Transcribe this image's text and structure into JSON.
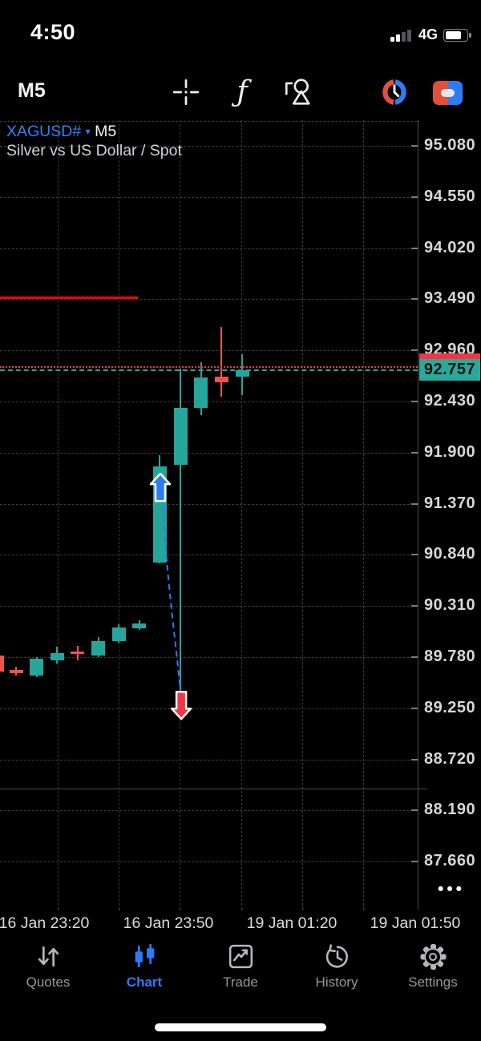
{
  "status_bar": {
    "time": "4:50",
    "network": "4G",
    "signal_bars_total": 4,
    "signal_bars_active": 2,
    "battery_level": 0.72
  },
  "toolbar": {
    "timeframe": "M5",
    "icons": [
      "crosshair",
      "function",
      "objects",
      "trading-sessions",
      "one-click-trading"
    ]
  },
  "chart": {
    "symbol": "XAGUSD#",
    "symbol_caret": "▾",
    "timeframe": "M5",
    "description": "Silver vs US Dollar / Spot",
    "current_price": "92.757",
    "bid_price": 92.757,
    "ask_price": 92.787,
    "more_label": "•••",
    "price_axis_labels": [
      "95.080",
      "94.550",
      "94.020",
      "93.490",
      "92.960",
      "92.430",
      "91.900",
      "91.370",
      "90.840",
      "90.310",
      "89.780",
      "89.250",
      "88.720",
      "88.190",
      "87.660"
    ],
    "time_axis_labels": [
      "16 Jan 23:20",
      "16 Jan 23:50",
      "19 Jan 01:20",
      "19 Jan 01:50"
    ],
    "level_line": {
      "price": 93.502,
      "x_from": 0,
      "x_to": 172
    },
    "chart_data": {
      "type": "candlestick",
      "title": "XAGUSD# M5",
      "ylim": [
        87.66,
        95.08
      ],
      "candles": [
        {
          "slot": -0.9,
          "dir": "down",
          "o": 89.8,
          "h": 89.8,
          "l": 89.63,
          "c": 89.63
        },
        {
          "slot": 0,
          "dir": "down",
          "o": 89.65,
          "h": 89.68,
          "l": 89.59,
          "c": 89.61
        },
        {
          "slot": 1,
          "dir": "up",
          "o": 89.59,
          "h": 89.78,
          "l": 89.57,
          "c": 89.76
        },
        {
          "slot": 2,
          "dir": "up",
          "o": 89.75,
          "h": 89.89,
          "l": 89.71,
          "c": 89.82
        },
        {
          "slot": 3,
          "dir": "down",
          "o": 89.84,
          "h": 89.9,
          "l": 89.75,
          "c": 89.81
        },
        {
          "slot": 4,
          "dir": "up",
          "o": 89.8,
          "h": 89.99,
          "l": 89.78,
          "c": 89.95
        },
        {
          "slot": 5,
          "dir": "up",
          "o": 89.95,
          "h": 90.12,
          "l": 89.93,
          "c": 90.09
        },
        {
          "slot": 6,
          "dir": "up",
          "o": 90.08,
          "h": 90.16,
          "l": 90.06,
          "c": 90.13
        },
        {
          "slot": 7,
          "dir": "up",
          "o": 90.76,
          "h": 91.87,
          "l": 90.75,
          "c": 91.76
        },
        {
          "slot": 8,
          "dir": "up",
          "o": 91.77,
          "h": 92.77,
          "l": 89.41,
          "c": 92.36
        },
        {
          "slot": 9,
          "dir": "up",
          "o": 92.36,
          "h": 92.84,
          "l": 92.29,
          "c": 92.68
        },
        {
          "slot": 10,
          "dir": "down",
          "o": 92.69,
          "h": 93.2,
          "l": 92.48,
          "c": 92.63
        },
        {
          "slot": 11,
          "dir": "up",
          "o": 92.69,
          "h": 92.92,
          "l": 92.5,
          "c": 92.757
        }
      ]
    },
    "markers": {
      "buy_arrow": {
        "slot": 7,
        "price": 91.54
      },
      "sell_arrow": {
        "slot": 8,
        "price": 89.28
      }
    }
  },
  "tab_bar": {
    "active": "Chart",
    "items": [
      {
        "label": "Quotes",
        "icon": "quotes-arrows-icon"
      },
      {
        "label": "Chart",
        "icon": "chart-candles-icon"
      },
      {
        "label": "Trade",
        "icon": "trade-chart-icon"
      },
      {
        "label": "History",
        "icon": "history-clock-icon"
      },
      {
        "label": "Settings",
        "icon": "settings-gear-icon"
      }
    ]
  },
  "colors": {
    "bull": "#26a69a",
    "bear": "#ef5350",
    "accent_blue": "#2e7bf6",
    "sell_red": "#f23645",
    "level_line_red": "#ff0000",
    "tag_bg": "#2aa99a",
    "session_red": "#e0503c"
  }
}
